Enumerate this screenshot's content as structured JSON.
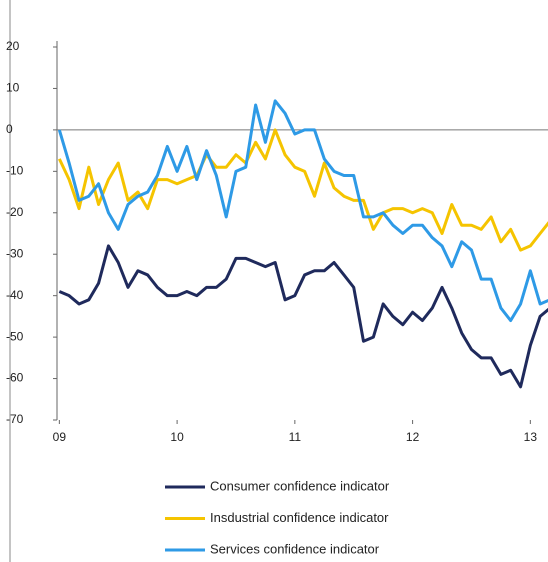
{
  "chart_data": {
    "type": "line",
    "x": [
      9,
      9.083,
      9.167,
      9.25,
      9.333,
      9.417,
      9.5,
      9.583,
      9.667,
      9.75,
      9.833,
      9.917,
      10,
      10.083,
      10.167,
      10.25,
      10.333,
      10.417,
      10.5,
      10.583,
      10.667,
      10.75,
      10.833,
      10.917,
      11,
      11.083,
      11.167,
      11.25,
      11.333,
      11.417,
      11.5,
      11.583,
      11.667,
      11.75,
      11.833,
      11.917,
      12,
      12.083,
      12.167,
      12.25,
      12.333,
      12.417,
      12.5,
      12.583,
      12.667,
      12.75,
      12.833,
      12.917,
      13,
      13.083,
      13.167
    ],
    "series": [
      {
        "name": "Consumer confidence indicator",
        "color": "#1f2a5c",
        "values": [
          -39,
          -40,
          -42,
          -41,
          -37,
          -28,
          -32,
          -38,
          -34,
          -35,
          -38,
          -40,
          -40,
          -39,
          -40,
          -38,
          -38,
          -36,
          -31,
          -31,
          -32,
          -33,
          -32,
          -41,
          -40,
          -35,
          -34,
          -34,
          -32,
          -35,
          -38,
          -51,
          -50,
          -42,
          -45,
          -47,
          -44,
          -46,
          -43,
          -38,
          -43,
          -49,
          -53,
          -55,
          -55,
          -59,
          -58,
          -62,
          -52,
          -45,
          -43
        ]
      },
      {
        "name": "Insdustrial confidence indicator",
        "color": "#f5c400",
        "values": [
          -7,
          -12,
          -19,
          -9,
          -18,
          -12,
          -8,
          -17,
          -15,
          -19,
          -12,
          -12,
          -13,
          -12,
          -11,
          -6,
          -9,
          -9,
          -6,
          -8,
          -3,
          -7,
          0,
          -6,
          -9,
          -10,
          -16,
          -8,
          -14,
          -16,
          -17,
          -17,
          -24,
          -20,
          -19,
          -19,
          -20,
          -19,
          -20,
          -25,
          -18,
          -23,
          -23,
          -24,
          -21,
          -27,
          -24,
          -29,
          -28,
          -25,
          -22
        ]
      },
      {
        "name": "Services confidence indicator",
        "color": "#2e9ae6",
        "values": [
          0,
          -8,
          -17,
          -16,
          -13,
          -20,
          -24,
          -18,
          -16,
          -15,
          -11,
          -4,
          -10,
          -4,
          -12,
          -5,
          -11,
          -21,
          -10,
          -9,
          6,
          -3,
          7,
          4,
          -1,
          0,
          0,
          -7,
          -10,
          -11,
          -11,
          -21,
          -21,
          -20,
          -23,
          -25,
          -23,
          -23,
          -26,
          -28,
          -33,
          -27,
          -29,
          -36,
          -36,
          -43,
          -46,
          -42,
          -34,
          -42,
          -41
        ]
      }
    ],
    "xlim": [
      8.98,
      13.15
    ],
    "xticks": [
      {
        "value": 9,
        "label": "09"
      },
      {
        "value": 10,
        "label": "10"
      },
      {
        "value": 11,
        "label": "11"
      },
      {
        "value": 12,
        "label": "12"
      },
      {
        "value": 13,
        "label": "13"
      }
    ],
    "ylim": [
      -70,
      20
    ],
    "yticks": [
      20,
      10,
      0,
      -10,
      -20,
      -30,
      -40,
      -50,
      -60,
      -70
    ]
  }
}
